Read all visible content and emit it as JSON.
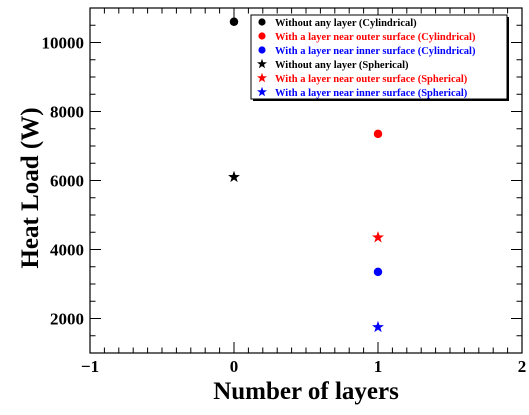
{
  "chart_data": {
    "type": "scatter",
    "title": "",
    "xlabel": "Number of layers",
    "ylabel": "Heat Load (W)",
    "xlim": [
      -1,
      2
    ],
    "ylim": [
      1000,
      11000
    ],
    "x_ticks": [
      -1,
      0,
      1,
      2
    ],
    "y_ticks": [
      2000,
      4000,
      6000,
      8000,
      10000
    ],
    "grid": false,
    "legend_position": "top-right",
    "series": [
      {
        "name": "Without any layer (Cylindrical)",
        "color": "#000000",
        "marker": "circle",
        "points": [
          {
            "x": 0,
            "y": 10600
          }
        ]
      },
      {
        "name": "With a layer near outer surface (Cylindrical)",
        "color": "#ff0000",
        "marker": "circle",
        "points": [
          {
            "x": 1,
            "y": 7350
          }
        ]
      },
      {
        "name": "With a layer near inner surface (Cylindrical)",
        "color": "#0000ff",
        "marker": "circle",
        "points": [
          {
            "x": 1,
            "y": 3350
          }
        ]
      },
      {
        "name": "Without any layer (Spherical)",
        "color": "#000000",
        "marker": "star",
        "points": [
          {
            "x": 0,
            "y": 6100
          }
        ]
      },
      {
        "name": "With a layer near outer surface (Spherical)",
        "color": "#ff0000",
        "marker": "star",
        "points": [
          {
            "x": 1,
            "y": 4350
          }
        ]
      },
      {
        "name": "With a layer near inner surface (Spherical)",
        "color": "#0000ff",
        "marker": "star",
        "points": [
          {
            "x": 1,
            "y": 1750
          }
        ]
      }
    ]
  }
}
